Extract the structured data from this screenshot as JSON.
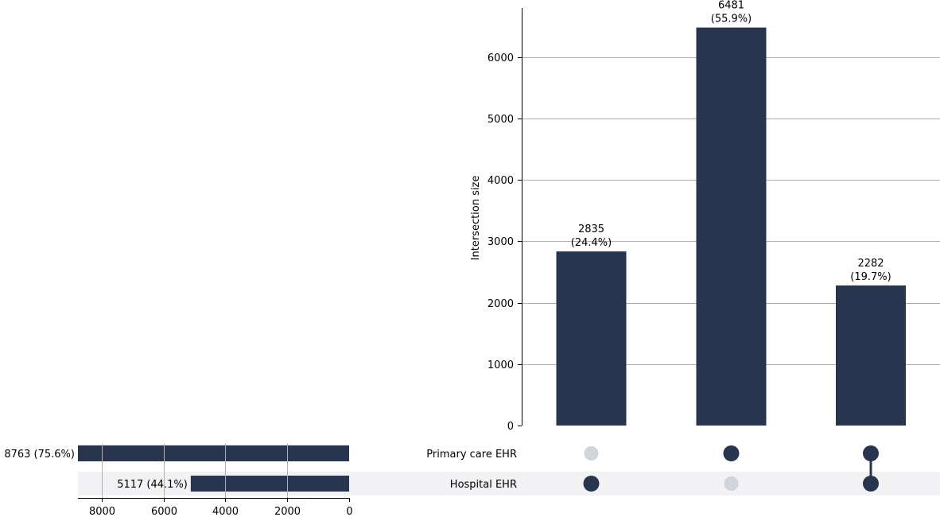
{
  "chart_data": {
    "type": "upset",
    "bar_color": "#27354f",
    "inactive_dot_color": "#d1d5da",
    "shade_color": "#f2f2f4",
    "intersections": {
      "ylabel": "Intersection size",
      "ylim": [
        0,
        6800
      ],
      "yticks": [
        0,
        1000,
        2000,
        3000,
        4000,
        5000,
        6000
      ],
      "bars": [
        {
          "value": 2835,
          "count_label": "2835",
          "pct_label": "(24.4%)",
          "members": [
            false,
            true
          ]
        },
        {
          "value": 6481,
          "count_label": "6481",
          "pct_label": "(55.9%)",
          "members": [
            true,
            false
          ]
        },
        {
          "value": 2282,
          "count_label": "2282",
          "pct_label": "(19.7%)",
          "members": [
            true,
            true
          ]
        }
      ]
    },
    "sets": {
      "names": [
        "Primary care EHR",
        "Hospital EHR"
      ],
      "values": [
        8763,
        5117
      ],
      "labels": [
        "8763 (75.6%)",
        "5117 (44.1%)"
      ],
      "xlim": [
        8763,
        0
      ],
      "xticks": [
        8000,
        6000,
        4000,
        2000,
        0
      ]
    }
  }
}
